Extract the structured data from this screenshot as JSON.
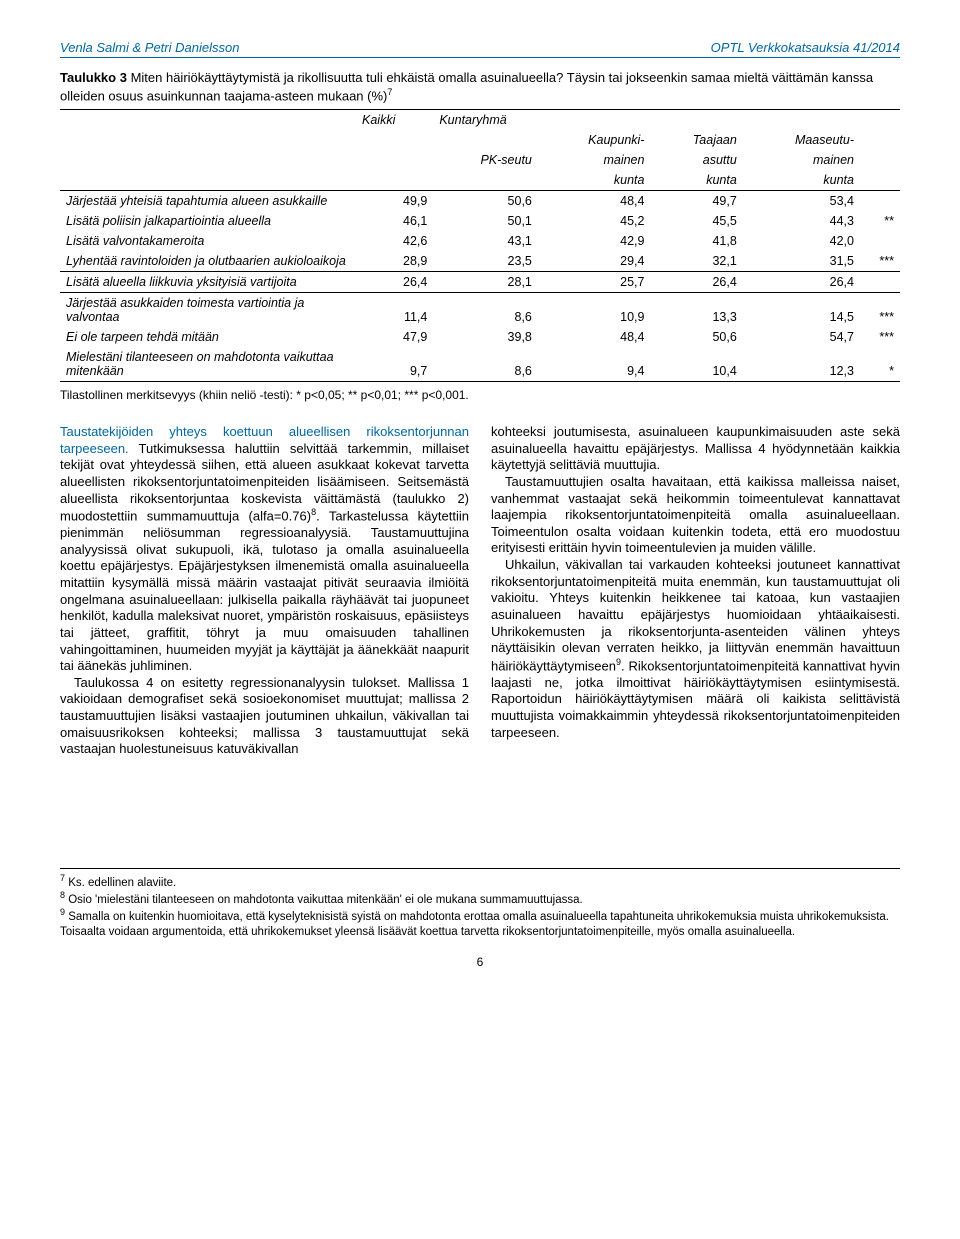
{
  "header": {
    "left": "Venla Salmi & Petri Danielsson",
    "right": "OPTL Verkkokatsauksia 41/2014"
  },
  "table": {
    "title_bold": "Taulukko 3",
    "title_rest": " Miten häiriökäyttäytymistä ja rikollisuutta tuli ehkäistä omalla asuinalueella? Täysin tai jokseenkin samaa mieltä väittämän kanssa olleiden osuus asuinkunnan taajama-asteen mukaan (%)",
    "title_sup": "7",
    "headers": {
      "kaikki": "Kaikki",
      "kuntaryhma": "Kuntaryhmä",
      "pk": "PK-seutu",
      "kaup": [
        "Kaupunki-",
        "mainen",
        "kunta"
      ],
      "taaj": [
        "Taajaan",
        "asuttu",
        "kunta"
      ],
      "maas": [
        "Maaseutu-",
        "mainen",
        "kunta"
      ]
    },
    "rows": [
      {
        "label": "Järjestää yhteisiä tapahtumia alueen asukkaille",
        "v": [
          "49,9",
          "50,6",
          "48,4",
          "49,7",
          "53,4"
        ],
        "sig": "",
        "section": false
      },
      {
        "label": "Lisätä poliisin jalkapartiointia alueella",
        "v": [
          "46,1",
          "50,1",
          "45,2",
          "45,5",
          "44,3"
        ],
        "sig": "**",
        "section": false
      },
      {
        "label": "Lisätä valvontakameroita",
        "v": [
          "42,6",
          "43,1",
          "42,9",
          "41,8",
          "42,0"
        ],
        "sig": "",
        "section": false
      },
      {
        "label": "Lyhentää ravintoloiden ja olutbaarien aukioloaikoja",
        "v": [
          "28,9",
          "23,5",
          "29,4",
          "32,1",
          "31,5"
        ],
        "sig": "***",
        "section": false
      },
      {
        "label": "Lisätä alueella liikkuvia yksityisiä vartijoita",
        "v": [
          "26,4",
          "28,1",
          "25,7",
          "26,4",
          "26,4"
        ],
        "sig": "",
        "section": true
      },
      {
        "label": "Järjestää asukkaiden toimesta vartiointia ja valvontaa",
        "v": [
          "11,4",
          "8,6",
          "10,9",
          "13,3",
          "14,5"
        ],
        "sig": "***",
        "section": true
      },
      {
        "label": "Ei ole tarpeen tehdä mitään",
        "v": [
          "47,9",
          "39,8",
          "48,4",
          "50,6",
          "54,7"
        ],
        "sig": "***",
        "section": false
      },
      {
        "label": "Mielestäni tilanteeseen on mahdotonta vaikuttaa mitenkään",
        "v": [
          "9,7",
          "8,6",
          "9,4",
          "10,4",
          "12,3"
        ],
        "sig": "*",
        "section": false,
        "last": true
      }
    ],
    "note": "Tilastollinen merkitsevyys (khiin neliö -testi): * p<0,05; ** p<0,01; *** p<0,001."
  },
  "body": {
    "left": {
      "subhead": "Taustatekijöiden yhteys koettuun alueellisen rikoksentorjunnan tarpeeseen.",
      "p1a": " Tutkimuksessa haluttiin selvittää tarkemmin, millaiset tekijät ovat yhteydessä siihen, että alueen asukkaat kokevat tarvetta alueellisten rikoksentorjuntatoimenpiteiden lisäämiseen. Seitsemästä alueellista rikoksentorjuntaa koskevista väittämästä (taulukko 2) muodostettiin summamuuttuja (alfa=0.76)",
      "p1sup": "8",
      "p1b": ". Tarkastelussa käytettiin pienimmän neliösumman regressioanalyysiä. Taustamuuttujina analyysissä olivat sukupuoli, ikä, tulotaso ja omalla asuinalueella koettu epäjärjestys. Epäjärjestyksen ilmenemistä omalla asuinalueella mitattiin kysymällä missä määrin vastaajat pitivät seuraavia ilmiöitä ongelmana asuinalueellaan: julkisella paikalla räyhäävät tai juopuneet henkilöt, kadulla maleksivat nuoret, ympäristön roskaisuus, epäsiisteys tai jätteet, graffitit, töhryt ja muu omaisuuden tahallinen vahingoittaminen, huumeiden myyjät ja käyttäjät ja äänekkäät naapurit tai äänekäs juhliminen.",
      "p2": "Taulukossa 4 on esitetty regressionanalyysin tulokset. Mallissa 1 vakioidaan demografiset sekä sosioekonomiset muuttujat; mallissa 2 taustamuuttujien lisäksi vastaajien joutuminen uhkailun, väkivallan tai omaisuusrikoksen kohteeksi; mallissa 3 taustamuuttujat sekä vastaajan huolestuneisuus katuväkivallan"
    },
    "right": {
      "p1": "kohteeksi joutumisesta, asuinalueen kaupunkimaisuuden aste sekä asuinalueella havaittu epäjärjestys. Mallissa 4 hyödynnetään kaikkia käytettyjä selittäviä muuttujia.",
      "p2": "Taustamuuttujien osalta havaitaan, että kaikissa malleissa naiset, vanhemmat vastaajat sekä heikommin toimeentulevat kannattavat laajempia rikoksentorjuntatoimenpiteitä omalla asuinalueellaan. Toimeentulon osalta voidaan kuitenkin todeta, että ero muodostuu erityisesti erittäin hyvin toimeentulevien ja muiden välille.",
      "p3a": "Uhkailun, väkivallan tai varkauden kohteeksi joutuneet kannattivat rikoksentorjuntatoimenpiteitä muita enemmän, kun taustamuuttujat oli vakioitu. Yhteys kuitenkin heikkenee tai katoaa, kun vastaajien asuinalueen havaittu epäjärjestys huomioidaan yhtäaikaisesti. Uhrikokemusten ja rikoksentorjunta-asenteiden välinen yhteys näyttäisikin olevan verraten heikko, ja liittyvän enemmän havaittuun häiriökäyttäytymiseen",
      "p3sup": "9",
      "p3b": ". Rikoksentorjuntatoimenpiteitä kannattivat hyvin laajasti ne, jotka ilmoittivat häiriökäyttäytymisen esiintymisestä. Raportoidun häiriökäyttäytymisen määrä oli kaikista selittävistä muuttujista voimakkaimmin yhteydessä rikoksentorjuntatoimenpiteiden tarpeeseen."
    }
  },
  "footnotes": {
    "f7": "Ks. edellinen alaviite.",
    "f8": "Osio 'mielestäni tilanteeseen on mahdotonta vaikuttaa mitenkään' ei ole mukana summamuuttujassa.",
    "f9": "Samalla on kuitenkin huomioitava, että kyselyteknisistä syistä on mahdotonta erottaa omalla asuinalueella tapahtuneita uhrikokemuksia muista uhrikokemuksista. Toisaalta voidaan argumentoida, että uhrikokemukset yleensä lisäävät koettua tarvetta rikoksentorjuntatoimenpiteille, myös omalla asuinalueella."
  },
  "pagenum": "6"
}
